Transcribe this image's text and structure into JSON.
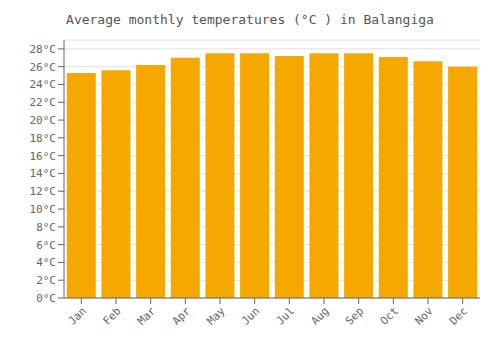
{
  "chart_data": {
    "type": "bar",
    "title": "Average monthly temperatures (°C ) in Balangiga",
    "categories": [
      "Jan",
      "Feb",
      "Mar",
      "Apr",
      "May",
      "Jun",
      "Jul",
      "Aug",
      "Sep",
      "Oct",
      "Nov",
      "Dec"
    ],
    "values": [
      25.3,
      25.6,
      26.2,
      27.0,
      27.5,
      27.5,
      27.2,
      27.5,
      27.5,
      27.1,
      26.6,
      26.0
    ],
    "color": "#F5A800",
    "ylim": [
      0,
      29
    ],
    "yticks": [
      {
        "value": 0,
        "label": "0°C"
      },
      {
        "value": 2,
        "label": "2°C"
      },
      {
        "value": 4,
        "label": "4°C"
      },
      {
        "value": 6,
        "label": "6°C"
      },
      {
        "value": 8,
        "label": "8°C"
      },
      {
        "value": 10,
        "label": "10°C"
      },
      {
        "value": 12,
        "label": "12°C"
      },
      {
        "value": 14,
        "label": "14°C"
      },
      {
        "value": 16,
        "label": "16°C"
      },
      {
        "value": 18,
        "label": "18°C"
      },
      {
        "value": 20,
        "label": "20°C"
      },
      {
        "value": 22,
        "label": "22°C"
      },
      {
        "value": 24,
        "label": "24°C"
      },
      {
        "value": 26,
        "label": "26°C"
      },
      {
        "value": 28,
        "label": "28°C"
      }
    ],
    "grid": true
  }
}
